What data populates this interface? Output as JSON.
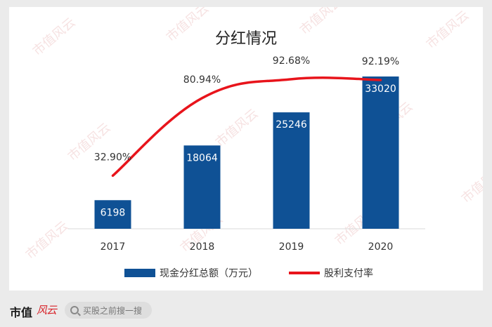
{
  "colors": {
    "bar": "#0f5195",
    "line": "#e8141b",
    "bar_label": "#ffffff",
    "text": "#333333",
    "watermark": "#f0cccc"
  },
  "watermark_text": "市值风云",
  "footer": {
    "brand": "市值",
    "brand_mark": "风云",
    "search_placeholder": "买股之前搜一搜",
    "search_icon": "search-icon"
  },
  "chart_data": {
    "type": "bar",
    "title": "分红情况",
    "categories": [
      "2017",
      "2018",
      "2019",
      "2020"
    ],
    "ylim": [
      0,
      35000
    ],
    "series": [
      {
        "name": "现金分红总额（万元）",
        "type": "bar",
        "values": [
          6198,
          18064,
          25246,
          33020
        ],
        "labels": [
          "6198",
          "18064",
          "25246",
          "33020"
        ]
      },
      {
        "name": "股利支付率",
        "type": "line",
        "values": [
          32.9,
          80.94,
          92.68,
          92.19
        ],
        "labels": [
          "32.90%",
          "80.94%",
          "92.68%",
          "92.19%"
        ],
        "ylim": [
          0,
          100
        ]
      }
    ],
    "legend": "bottom",
    "grid": false
  }
}
